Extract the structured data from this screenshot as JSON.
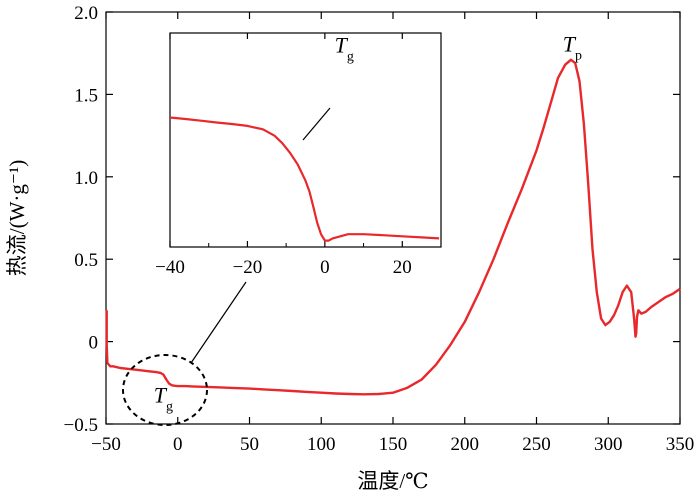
{
  "chart_data": [
    {
      "type": "line",
      "xlabel": "温度/℃",
      "ylabel": "热流/(W·g⁻¹)",
      "xlim": [
        -50,
        350
      ],
      "ylim": [
        -0.5,
        2.0
      ],
      "xticks": [
        "−50",
        "0",
        "50",
        "100",
        "150",
        "200",
        "250",
        "300",
        "350"
      ],
      "yticks": [
        "−0.5",
        "0",
        "0.5",
        "1.0",
        "1.5",
        "2.0"
      ],
      "line_color": "#e8282b",
      "annotations": [
        {
          "text": "T",
          "sub": "g",
          "x": -10,
          "y": -0.37
        },
        {
          "text": "T",
          "sub": "p",
          "x": 275,
          "y": 1.76
        }
      ],
      "series": [
        {
          "x": [
            -49.5,
            -49.5,
            -49.0,
            -47.0,
            -45.0,
            -40,
            -35,
            -30,
            -25,
            -20,
            -15,
            -12,
            -10,
            -8,
            -6,
            -4,
            -2,
            0,
            5,
            10,
            20,
            30,
            40,
            50,
            60,
            70,
            80,
            90,
            100,
            110,
            120,
            130,
            140,
            150,
            160,
            170,
            180,
            190,
            200,
            210,
            220,
            230,
            240,
            250,
            255,
            260,
            265,
            270,
            274,
            277,
            280,
            283,
            286,
            289,
            292,
            295,
            298,
            301,
            304,
            307,
            310,
            313,
            316,
            318,
            319,
            319.5,
            320,
            321,
            323,
            326,
            330,
            335,
            340,
            345,
            350
          ],
          "y": [
            0.19,
            -0.02,
            -0.13,
            -0.15,
            -0.15,
            -0.16,
            -0.165,
            -0.17,
            -0.175,
            -0.18,
            -0.185,
            -0.19,
            -0.2,
            -0.23,
            -0.255,
            -0.265,
            -0.268,
            -0.27,
            -0.27,
            -0.272,
            -0.275,
            -0.278,
            -0.282,
            -0.285,
            -0.29,
            -0.295,
            -0.3,
            -0.305,
            -0.31,
            -0.315,
            -0.318,
            -0.32,
            -0.318,
            -0.31,
            -0.28,
            -0.23,
            -0.14,
            -0.02,
            0.12,
            0.3,
            0.5,
            0.72,
            0.93,
            1.16,
            1.3,
            1.45,
            1.6,
            1.68,
            1.71,
            1.69,
            1.58,
            1.32,
            0.96,
            0.56,
            0.3,
            0.14,
            0.1,
            0.12,
            0.16,
            0.22,
            0.3,
            0.34,
            0.3,
            0.14,
            0.03,
            0.05,
            0.15,
            0.19,
            0.17,
            0.18,
            0.21,
            0.24,
            0.27,
            0.29,
            0.32
          ]
        }
      ]
    },
    {
      "type": "line",
      "xlim": [
        -40,
        30
      ],
      "xticks": [
        "−40",
        "−20",
        "0",
        "20"
      ],
      "line_color": "#e8282b",
      "annotations": [
        {
          "text": "T",
          "sub": "g",
          "x": 5,
          "y": 0.9
        }
      ],
      "series": [
        {
          "x": [
            -40,
            -36,
            -32,
            -28,
            -24,
            -20,
            -16,
            -13,
            -11,
            -9,
            -7,
            -5,
            -4,
            -3,
            -2,
            -1,
            0,
            1,
            2,
            4,
            6,
            10,
            15,
            20,
            25,
            29.5
          ],
          "y": [
            0.605,
            0.598,
            0.59,
            0.582,
            0.575,
            0.566,
            0.55,
            0.52,
            0.485,
            0.44,
            0.385,
            0.31,
            0.26,
            0.19,
            0.115,
            0.06,
            0.03,
            0.03,
            0.04,
            0.05,
            0.06,
            0.06,
            0.055,
            0.05,
            0.045,
            0.04
          ]
        }
      ]
    }
  ]
}
